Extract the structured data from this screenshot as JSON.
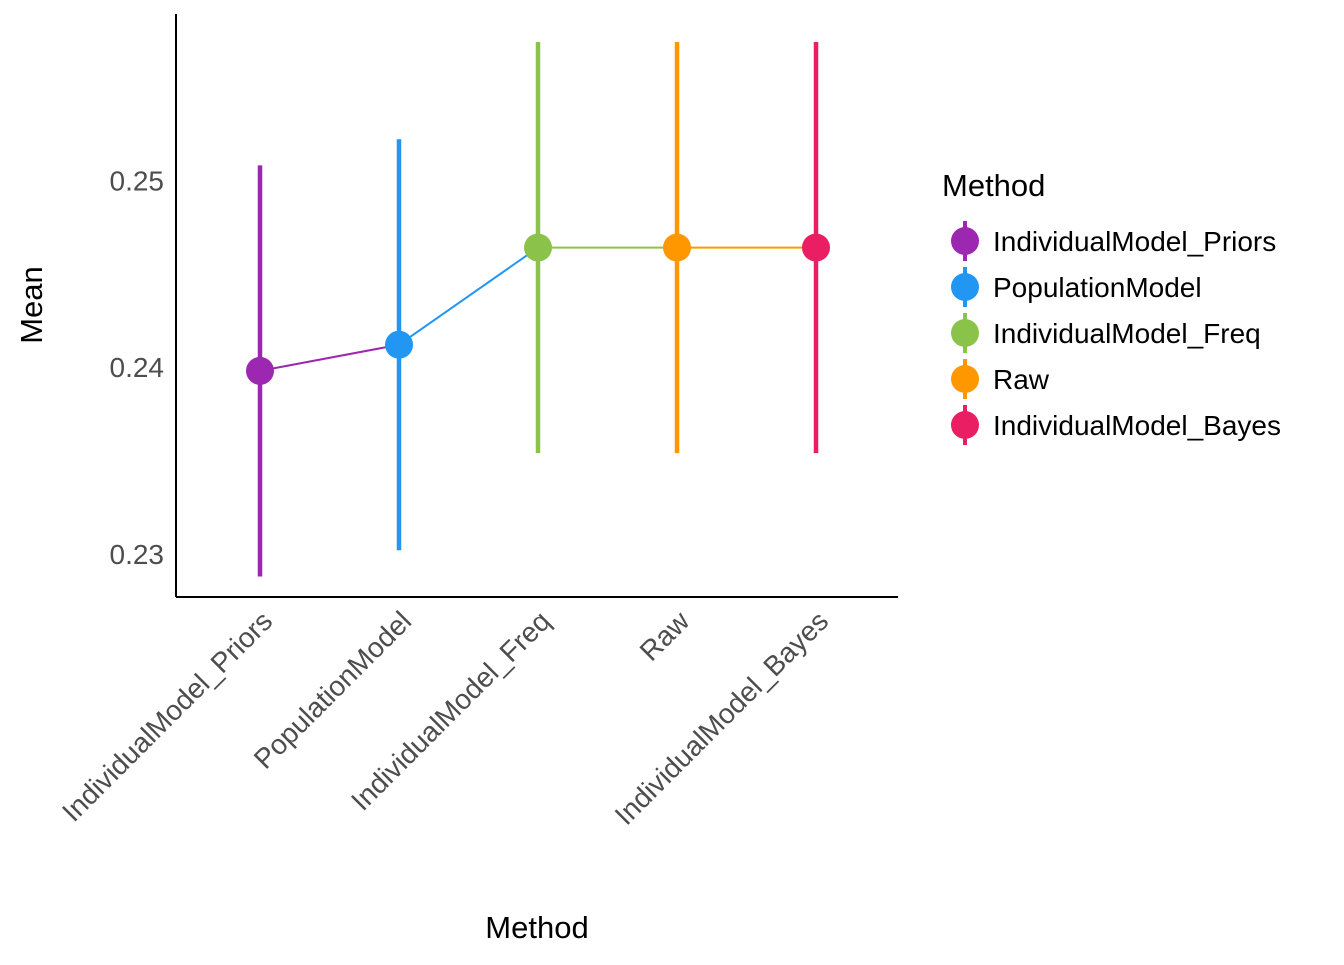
{
  "chart_data": {
    "type": "pointrange",
    "xlabel": "Method",
    "ylabel": "Mean",
    "categories": [
      "IndividualModel_Priors",
      "PopulationModel",
      "IndividualModel_Freq",
      "Raw",
      "IndividualModel_Bayes"
    ],
    "series": [
      {
        "category": "IndividualModel_Priors",
        "mean": 0.2398,
        "lower": 0.2288,
        "upper": 0.2508,
        "color": "#9c27b0"
      },
      {
        "category": "PopulationModel",
        "mean": 0.2412,
        "lower": 0.2302,
        "upper": 0.2522,
        "color": "#2196f3"
      },
      {
        "category": "IndividualModel_Freq",
        "mean": 0.2464,
        "lower": 0.2354,
        "upper": 0.2574,
        "color": "#8bc34a"
      },
      {
        "category": "Raw",
        "mean": 0.2464,
        "lower": 0.2354,
        "upper": 0.2574,
        "color": "#ff9800"
      },
      {
        "category": "IndividualModel_Bayes",
        "mean": 0.2464,
        "lower": 0.2354,
        "upper": 0.2574,
        "color": "#e91e63"
      }
    ],
    "yticks": [
      0.23,
      0.24,
      0.25
    ],
    "ytick_labels": [
      "0.23",
      "0.24",
      "0.25"
    ],
    "ylim": [
      0.2277,
      0.2589
    ],
    "grid": false,
    "legend": {
      "title": "Method",
      "placement": "right",
      "items": [
        "IndividualModel_Priors",
        "PopulationModel",
        "IndividualModel_Freq",
        "Raw",
        "IndividualModel_Bayes"
      ]
    }
  }
}
